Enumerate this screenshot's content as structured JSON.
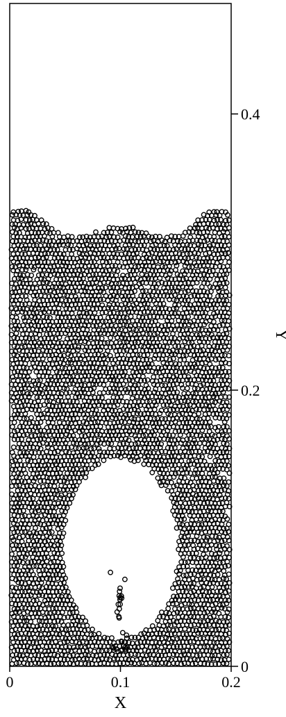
{
  "chart_data": {
    "type": "scatter",
    "marker": "open-circle",
    "marker_color": "#000000",
    "xlabel": "X",
    "ylabel": "Y",
    "xlim": [
      0,
      0.2
    ],
    "ylim": [
      0,
      0.48
    ],
    "y_axis_side": "right",
    "grid": false,
    "legend": "none",
    "xticks": [
      {
        "value": 0,
        "label": "0"
      },
      {
        "value": 0.1,
        "label": "0.1"
      },
      {
        "value": 0.2,
        "label": "0.2"
      }
    ],
    "yticks": [
      {
        "value": 0,
        "label": "0"
      },
      {
        "value": 0.2,
        "label": "0.2"
      },
      {
        "value": 0.4,
        "label": "0.4"
      }
    ],
    "particle_bed": {
      "particle_diameter": 0.0034,
      "bed_top_y": 0.31,
      "bed_top_peaks": [
        {
          "x": 0.012,
          "y": 0.332
        },
        {
          "x": 0.1,
          "y": 0.32
        },
        {
          "x": 0.188,
          "y": 0.332
        }
      ],
      "bubble": {
        "center_x": 0.1,
        "center_y": 0.085,
        "radius_x": 0.052,
        "radius_y": 0.065
      },
      "dense_bottom_layer_y": 0.03
    }
  }
}
